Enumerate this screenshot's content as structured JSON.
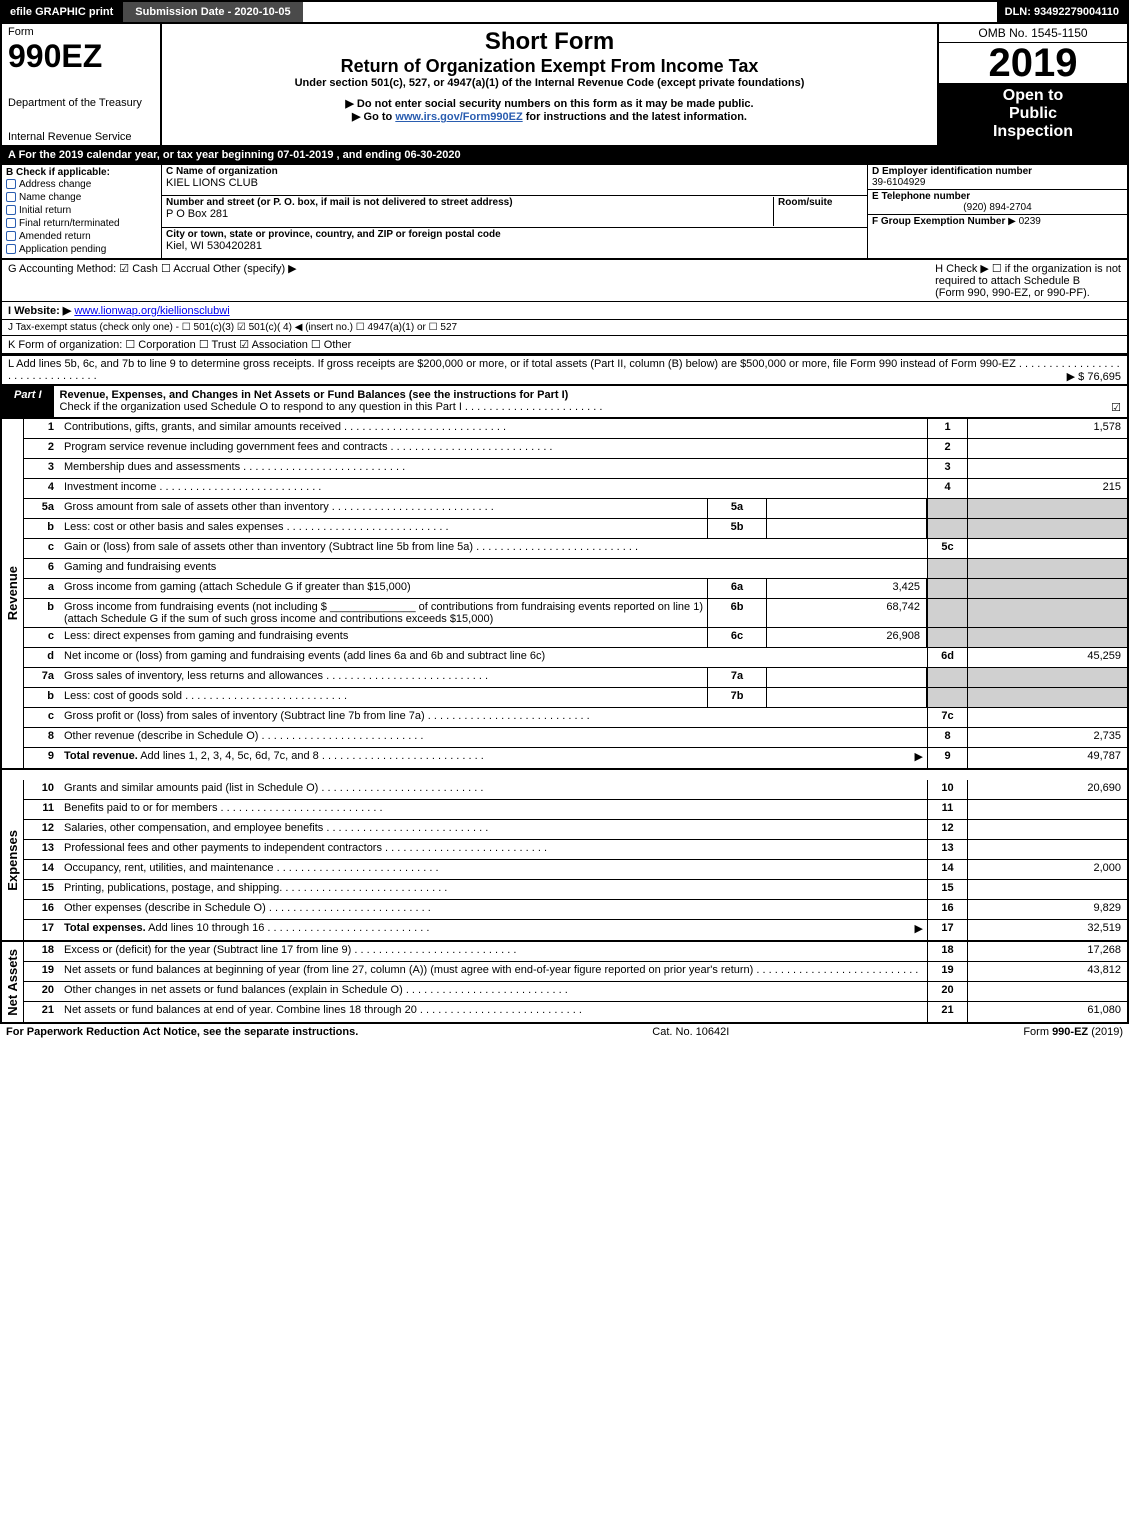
{
  "topbar": {
    "left": "efile GRAPHIC print",
    "mid": "Submission Date - 2020-10-05",
    "right": "DLN: 93492279004110"
  },
  "header": {
    "form_word": "Form",
    "form_code": "990EZ",
    "dept1": "Department of the Treasury",
    "dept2": "Internal Revenue Service",
    "sf": "Short Form",
    "title": "Return of Organization Exempt From Income Tax",
    "sub": "Under section 501(c), 527, or 4947(a)(1) of the Internal Revenue Code (except private foundations)",
    "note1": "▶ Do not enter social security numbers on this form as it may be made public.",
    "note2_pre": "▶ Go to ",
    "note2_link": "www.irs.gov/Form990EZ",
    "note2_post": " for instructions and the latest information.",
    "omb": "OMB No. 1545-1150",
    "year": "2019",
    "open1": "Open to",
    "open2": "Public",
    "open3": "Inspection"
  },
  "taxyear": "A  For the 2019 calendar year, or tax year beginning 07-01-2019 , and ending 06-30-2020",
  "info": {
    "b_label": "B  Check if applicable:",
    "opts": [
      "Address change",
      "Name change",
      "Initial return",
      "Final return/terminated",
      "Amended return",
      "Application pending"
    ],
    "c_name_lbl": "C Name of organization",
    "c_name": "KIEL LIONS CLUB",
    "c_street_lbl": "Number and street (or P. O. box, if mail is not delivered to street address)",
    "room_lbl": "Room/suite",
    "c_street": "P O Box 281",
    "c_city_lbl": "City or town, state or province, country, and ZIP or foreign postal code",
    "c_city": "Kiel, WI  530420281",
    "d_lbl": "D Employer identification number",
    "d_val": "39-6104929",
    "e_lbl": "E Telephone number",
    "e_val": "(920) 894-2704",
    "f_lbl": "F Group Exemption Number",
    "f_val": "▶ 0239"
  },
  "mid": {
    "g": "G Accounting Method:   ☑ Cash   ☐ Accrual   Other (specify) ▶",
    "h1": "H  Check ▶  ☐  if the organization is not",
    "h2": "required to attach Schedule B",
    "h3": "(Form 990, 990-EZ, or 990-PF).",
    "i_pre": "I Website: ▶",
    "i_link": "www.lionwap.org/kiellionsclubwi",
    "j": "J Tax-exempt status (check only one) -  ☐ 501(c)(3)  ☑ 501(c)( 4) ◀ (insert no.)  ☐ 4947(a)(1) or  ☐ 527",
    "k": "K Form of organization:   ☐ Corporation   ☐ Trust   ☑ Association   ☐ Other",
    "l": "L Add lines 5b, 6c, and 7b to line 9 to determine gross receipts. If gross receipts are $200,000 or more, or if total assets (Part II, column (B) below) are $500,000 or more, file Form 990 instead of Form 990-EZ  . . . . . . . . . . . . . . . . . . . . . . . . . . . . . . . .",
    "l_amount": "▶ $ 76,695"
  },
  "part1": {
    "tag": "Part I",
    "title": "Revenue, Expenses, and Changes in Net Assets or Fund Balances (see the instructions for Part I)",
    "sub": "Check if the organization used Schedule O to respond to any question in this Part I . . . . . . . . . . . . . . . . . . . . . . .",
    "check": "☑"
  },
  "rev_label": "Revenue",
  "exp_label": "Expenses",
  "na_label": "Net Assets",
  "rows": [
    {
      "n": "1",
      "d": "Contributions, gifts, grants, and similar amounts received",
      "dots": true,
      "num": "1",
      "val": "1,578"
    },
    {
      "n": "2",
      "d": "Program service revenue including government fees and contracts",
      "dots": true,
      "num": "2",
      "val": ""
    },
    {
      "n": "3",
      "d": "Membership dues and assessments",
      "dots": true,
      "num": "3",
      "val": ""
    },
    {
      "n": "4",
      "d": "Investment income",
      "dots": true,
      "num": "4",
      "val": "215"
    },
    {
      "n": "5a",
      "d": "Gross amount from sale of assets other than inventory",
      "dots": true,
      "sub": "5a",
      "subval": "",
      "shade": true
    },
    {
      "n": "b",
      "d": "Less: cost or other basis and sales expenses",
      "dots": true,
      "sub": "5b",
      "subval": "",
      "shade": true
    },
    {
      "n": "c",
      "d": "Gain or (loss) from sale of assets other than inventory (Subtract line 5b from line 5a)",
      "dots": true,
      "num": "5c",
      "val": ""
    },
    {
      "n": "6",
      "d": "Gaming and fundraising events",
      "shade": true
    },
    {
      "n": "a",
      "d": "Gross income from gaming (attach Schedule G if greater than $15,000)",
      "sub": "6a",
      "subval": "3,425",
      "shade": true
    },
    {
      "n": "b",
      "d": "Gross income from fundraising events (not including $ ______________ of contributions from fundraising events reported on line 1) (attach Schedule G if the sum of such gross income and contributions exceeds $15,000)",
      "sub": "6b",
      "subval": "68,742",
      "shade": true
    },
    {
      "n": "c",
      "d": "Less: direct expenses from gaming and fundraising events",
      "sub": "6c",
      "subval": "26,908",
      "shade": true
    },
    {
      "n": "d",
      "d": "Net income or (loss) from gaming and fundraising events (add lines 6a and 6b and subtract line 6c)",
      "num": "6d",
      "val": "45,259"
    },
    {
      "n": "7a",
      "d": "Gross sales of inventory, less returns and allowances",
      "dots": true,
      "sub": "7a",
      "subval": "",
      "shade": true
    },
    {
      "n": "b",
      "d": "Less: cost of goods sold",
      "dots": true,
      "sub": "7b",
      "subval": "",
      "shade": true
    },
    {
      "n": "c",
      "d": "Gross profit or (loss) from sales of inventory (Subtract line 7b from line 7a)",
      "dots": true,
      "num": "7c",
      "val": ""
    },
    {
      "n": "8",
      "d": "Other revenue (describe in Schedule O)",
      "dots": true,
      "num": "8",
      "val": "2,735"
    },
    {
      "n": "9",
      "d": "Total revenue. Add lines 1, 2, 3, 4, 5c, 6d, 7c, and 8",
      "dots": true,
      "bold": true,
      "arrow": true,
      "num": "9",
      "val": "49,787"
    }
  ],
  "exp_rows": [
    {
      "n": "10",
      "d": "Grants and similar amounts paid (list in Schedule O)",
      "dots": true,
      "num": "10",
      "val": "20,690"
    },
    {
      "n": "11",
      "d": "Benefits paid to or for members",
      "dots": true,
      "num": "11",
      "val": ""
    },
    {
      "n": "12",
      "d": "Salaries, other compensation, and employee benefits",
      "dots": true,
      "num": "12",
      "val": ""
    },
    {
      "n": "13",
      "d": "Professional fees and other payments to independent contractors",
      "dots": true,
      "num": "13",
      "val": ""
    },
    {
      "n": "14",
      "d": "Occupancy, rent, utilities, and maintenance",
      "dots": true,
      "num": "14",
      "val": "2,000"
    },
    {
      "n": "15",
      "d": "Printing, publications, postage, and shipping.",
      "dots": true,
      "num": "15",
      "val": ""
    },
    {
      "n": "16",
      "d": "Other expenses (describe in Schedule O)",
      "dots": true,
      "num": "16",
      "val": "9,829"
    },
    {
      "n": "17",
      "d": "Total expenses. Add lines 10 through 16",
      "dots": true,
      "bold": true,
      "arrow": true,
      "num": "17",
      "val": "32,519"
    }
  ],
  "na_rows": [
    {
      "n": "18",
      "d": "Excess or (deficit) for the year (Subtract line 17 from line 9)",
      "dots": true,
      "num": "18",
      "val": "17,268"
    },
    {
      "n": "19",
      "d": "Net assets or fund balances at beginning of year (from line 27, column (A)) (must agree with end-of-year figure reported on prior year's return)",
      "dots": true,
      "num": "19",
      "val": "43,812",
      "shade_first": true
    },
    {
      "n": "20",
      "d": "Other changes in net assets or fund balances (explain in Schedule O)",
      "dots": true,
      "num": "20",
      "val": ""
    },
    {
      "n": "21",
      "d": "Net assets or fund balances at end of year. Combine lines 18 through 20",
      "dots": true,
      "num": "21",
      "val": "61,080"
    }
  ],
  "footer": {
    "l": "For Paperwork Reduction Act Notice, see the separate instructions.",
    "m": "Cat. No. 10642I",
    "r_pre": "Form ",
    "r_b": "990-EZ",
    "r_post": " (2019)"
  }
}
